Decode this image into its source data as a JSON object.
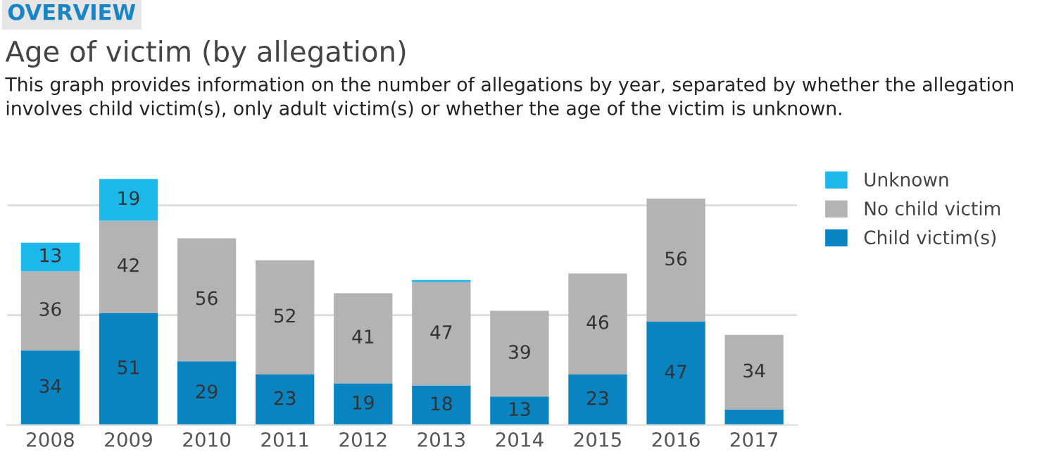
{
  "chart_data": {
    "type": "bar",
    "stacked": true,
    "title": "Age of victim (by allegation)",
    "subtitle": "This graph provides information on the number of allegations by year, separated by whether the allegation involves child victim(s), only adult victim(s) or whether the age of the victim is unknown.",
    "annotations": [
      "OVERVIEW"
    ],
    "categories": [
      "2008",
      "2009",
      "2010",
      "2011",
      "2012",
      "2013",
      "2014",
      "2015",
      "2016",
      "2017"
    ],
    "series": [
      {
        "name": "Child victim(s)",
        "color": "#0a84c1",
        "values": [
          34,
          51,
          29,
          23,
          19,
          18,
          13,
          23,
          47,
          7
        ],
        "value_labels": [
          "34",
          "51",
          "29",
          "23",
          "19",
          "18",
          "13",
          "23",
          "47",
          null
        ]
      },
      {
        "name": "No child victim",
        "color": "#b3b3b3",
        "values": [
          36,
          42,
          56,
          52,
          41,
          47,
          39,
          46,
          56,
          34
        ],
        "value_labels": [
          "36",
          "42",
          "56",
          "52",
          "41",
          "47",
          "39",
          "46",
          "56",
          "34"
        ]
      },
      {
        "name": "Unknown",
        "color": "#1cb8ea",
        "values": [
          13,
          19,
          null,
          null,
          null,
          1,
          null,
          null,
          null,
          null
        ],
        "value_labels": [
          "13",
          "19",
          null,
          null,
          null,
          null,
          null,
          null,
          null,
          null
        ]
      }
    ],
    "ref_lines": [
      {
        "axis": "y",
        "value": 50,
        "color": "#dcdcdc"
      },
      {
        "axis": "y",
        "value": 100,
        "color": "#dcdcdc"
      }
    ],
    "tick_labels": "x",
    "legend": "top right"
  }
}
